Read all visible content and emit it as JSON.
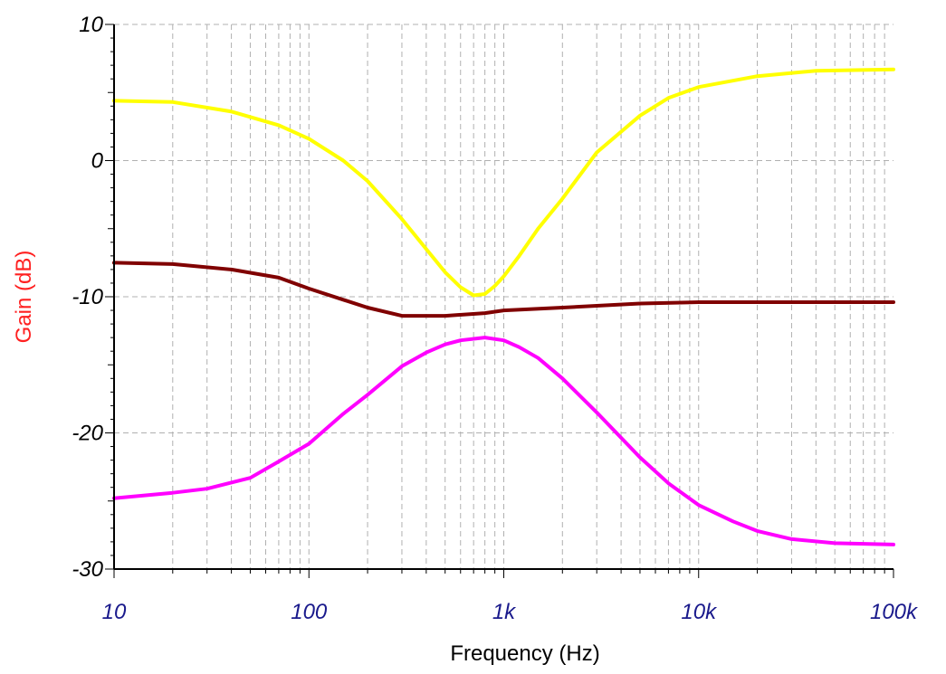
{
  "chart_data": {
    "type": "line",
    "title": "",
    "xlabel": "Frequency (Hz)",
    "ylabel": "Gain (dB)",
    "xscale": "log",
    "xlim": [
      10,
      100000
    ],
    "ylim": [
      -30,
      10
    ],
    "grid": true,
    "x_ticks": [
      {
        "value": 10,
        "label": "10"
      },
      {
        "value": 100,
        "label": "100"
      },
      {
        "value": 1000,
        "label": "1k"
      },
      {
        "value": 10000,
        "label": "10k"
      },
      {
        "value": 100000,
        "label": "100k"
      }
    ],
    "y_ticks": [
      {
        "value": 10,
        "label": "10"
      },
      {
        "value": 0,
        "label": "0"
      },
      {
        "value": -10,
        "label": "-10"
      },
      {
        "value": -20,
        "label": "-20"
      },
      {
        "value": -30,
        "label": "-30"
      }
    ],
    "series": [
      {
        "color": "#ffff00",
        "x": [
          10,
          20,
          40,
          70,
          100,
          150,
          200,
          300,
          400,
          500,
          600,
          700,
          800,
          900,
          1000,
          1200,
          1500,
          2000,
          3000,
          5000,
          7000,
          10000,
          20000,
          40000,
          100000
        ],
        "y": [
          4.4,
          4.3,
          3.6,
          2.6,
          1.6,
          0.0,
          -1.5,
          -4.3,
          -6.5,
          -8.2,
          -9.3,
          -9.9,
          -9.8,
          -9.2,
          -8.5,
          -7.0,
          -5.0,
          -2.8,
          0.6,
          3.3,
          4.6,
          5.4,
          6.2,
          6.6,
          6.7
        ]
      },
      {
        "color": "#800000",
        "x": [
          10,
          20,
          40,
          70,
          100,
          200,
          300,
          500,
          800,
          1000,
          2000,
          5000,
          10000,
          100000
        ],
        "y": [
          -7.5,
          -7.6,
          -8.0,
          -8.6,
          -9.4,
          -10.8,
          -11.4,
          -11.4,
          -11.2,
          -11.0,
          -10.8,
          -10.5,
          -10.4,
          -10.4
        ]
      },
      {
        "color": "#ff00ff",
        "x": [
          10,
          20,
          30,
          50,
          70,
          100,
          150,
          200,
          300,
          400,
          500,
          600,
          800,
          1000,
          1200,
          1500,
          2000,
          3000,
          5000,
          7000,
          10000,
          15000,
          20000,
          30000,
          50000,
          100000
        ],
        "y": [
          -24.8,
          -24.4,
          -24.1,
          -23.3,
          -22.1,
          -20.8,
          -18.6,
          -17.2,
          -15.1,
          -14.1,
          -13.5,
          -13.2,
          -13.0,
          -13.2,
          -13.7,
          -14.5,
          -16.0,
          -18.5,
          -21.8,
          -23.7,
          -25.3,
          -26.5,
          -27.2,
          -27.8,
          -28.1,
          -28.2
        ]
      }
    ]
  }
}
